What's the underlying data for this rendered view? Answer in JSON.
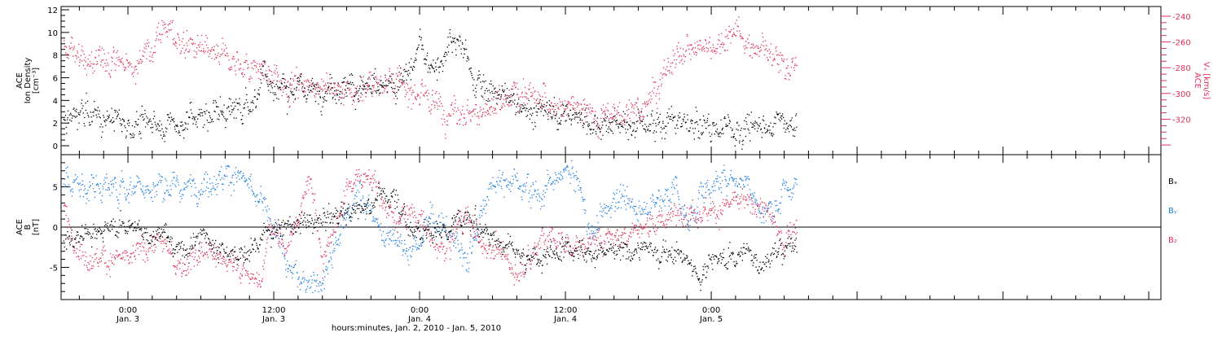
{
  "colors": {
    "black": "#000000",
    "velocity": "#e0305a",
    "bx": "#000000",
    "by": "#1f7fe0",
    "bz": "#e0305a"
  },
  "chart_data": [
    {
      "type": "scatter",
      "panel": "top",
      "ylabel_left": [
        "ACE",
        "Ion Density",
        "[cm⁻³]"
      ],
      "ylabel_right": [
        "ACE",
        "Vₓ [km/s]"
      ],
      "ylim_left": [
        -0.5,
        12
      ],
      "ylim_right": [
        -345,
        -235
      ],
      "yticks_left": [
        0,
        2,
        4,
        6,
        8,
        10,
        12
      ],
      "yticks_right": [
        -320,
        -300,
        -280,
        -260,
        -240
      ],
      "x_range_hours": [
        -5.5,
        85
      ],
      "series": [
        {
          "key": "density",
          "axis": "left",
          "color": "black",
          "knots": [
            [
              -5.3,
              2.6
            ],
            [
              -3,
              2.6
            ],
            [
              -1,
              2.1
            ],
            [
              1,
              1.9
            ],
            [
              3,
              1.9
            ],
            [
              5,
              2.3
            ],
            [
              7,
              2.9
            ],
            [
              9,
              3.3
            ],
            [
              10.5,
              4.2
            ],
            [
              11.2,
              6.8
            ],
            [
              12,
              5.2
            ],
            [
              14,
              5.0
            ],
            [
              17,
              5.2
            ],
            [
              20,
              5.1
            ],
            [
              22,
              5.0
            ],
            [
              23,
              6.0
            ],
            [
              24,
              8.5
            ],
            [
              25.5,
              7.0
            ],
            [
              26.5,
              9.0
            ],
            [
              27.5,
              8.5
            ],
            [
              29,
              5.0
            ],
            [
              31,
              4.5
            ],
            [
              33,
              3.2
            ],
            [
              35,
              2.8
            ],
            [
              37,
              2.5
            ],
            [
              39,
              2.3
            ],
            [
              40,
              2.0
            ],
            [
              42,
              2.2
            ],
            [
              45,
              2.1
            ],
            [
              47,
              1.5
            ],
            [
              51,
              1.5
            ],
            [
              53,
              2.0
            ],
            [
              54,
              2.3
            ],
            [
              55,
              2.0
            ]
          ],
          "noise": 0.9,
          "t_range": [
            -5.3,
            55
          ]
        },
        {
          "key": "vx",
          "axis": "right",
          "color": "velocity",
          "knots": [
            [
              -5.3,
              -265
            ],
            [
              -3,
              -275
            ],
            [
              -1,
              -272
            ],
            [
              0,
              -280
            ],
            [
              2,
              -265
            ],
            [
              3,
              -245
            ],
            [
              4,
              -258
            ],
            [
              6,
              -268
            ],
            [
              8,
              -273
            ],
            [
              10,
              -278
            ],
            [
              11,
              -283
            ],
            [
              13,
              -290
            ],
            [
              16,
              -293
            ],
            [
              18,
              -300
            ],
            [
              20,
              -292
            ],
            [
              22,
              -288
            ],
            [
              24,
              -302
            ],
            [
              26,
              -310
            ],
            [
              28,
              -315
            ],
            [
              30,
              -314
            ],
            [
              32,
              -300
            ],
            [
              34,
              -305
            ],
            [
              36,
              -310
            ],
            [
              38,
              -315
            ],
            [
              40,
              -318
            ],
            [
              42,
              -313
            ],
            [
              44,
              -285
            ],
            [
              46,
              -265
            ],
            [
              48,
              -262
            ],
            [
              50,
              -250
            ],
            [
              51,
              -262
            ],
            [
              53,
              -268
            ],
            [
              54,
              -278
            ],
            [
              55,
              -282
            ]
          ],
          "noise": 8,
          "t_range": [
            -5.3,
            55
          ]
        }
      ]
    },
    {
      "type": "scatter",
      "panel": "bottom",
      "ylabel_left": [
        "ACE",
        "B",
        "[nT]"
      ],
      "ylim": [
        -9,
        9
      ],
      "yticks": [
        -5,
        0,
        5
      ],
      "zero_line": true,
      "x_range_hours": [
        -5.5,
        85
      ],
      "legend": [
        "Bx",
        "By",
        "Bz"
      ],
      "series": [
        {
          "key": "bx",
          "color": "bx",
          "knots": [
            [
              -5.3,
              -1.5
            ],
            [
              -2,
              -0.5
            ],
            [
              0,
              0.5
            ],
            [
              2,
              -1
            ],
            [
              3,
              -1
            ],
            [
              4,
              -3
            ],
            [
              6,
              -1
            ],
            [
              8,
              -3
            ],
            [
              10,
              -3.5
            ],
            [
              11,
              -1
            ],
            [
              12,
              0
            ],
            [
              14,
              0.5
            ],
            [
              16,
              1
            ],
            [
              18,
              2
            ],
            [
              20,
              3
            ],
            [
              21,
              4
            ],
            [
              22,
              4
            ],
            [
              23,
              0
            ],
            [
              24,
              -0.5
            ],
            [
              26,
              -0.3
            ],
            [
              27,
              1.5
            ],
            [
              28,
              1
            ],
            [
              30,
              -1
            ],
            [
              32,
              -3
            ],
            [
              34,
              -4
            ],
            [
              36,
              -2
            ],
            [
              38,
              -3
            ],
            [
              40,
              -3
            ],
            [
              42,
              -2.5
            ],
            [
              44,
              -3
            ],
            [
              46,
              -3.5
            ],
            [
              47,
              -6.5
            ],
            [
              48,
              -4
            ],
            [
              50,
              -3.5
            ],
            [
              51,
              -3
            ],
            [
              52,
              -4.5
            ],
            [
              53,
              -3.5
            ],
            [
              55,
              -1.5
            ]
          ],
          "noise": 1.0,
          "t_range": [
            -5.3,
            55
          ]
        },
        {
          "key": "by",
          "color": "by",
          "knots": [
            [
              -5.3,
              5.5
            ],
            [
              -3,
              5
            ],
            [
              0,
              5
            ],
            [
              3,
              5
            ],
            [
              5,
              5
            ],
            [
              7,
              6
            ],
            [
              9,
              6.5
            ],
            [
              10,
              5
            ],
            [
              11,
              2.5
            ],
            [
              12,
              0
            ],
            [
              13,
              -5
            ],
            [
              14,
              -6.5
            ],
            [
              16,
              -6.5
            ],
            [
              17,
              -3
            ],
            [
              18,
              2
            ],
            [
              19,
              4
            ],
            [
              20,
              2
            ],
            [
              21,
              -1
            ],
            [
              22,
              -1
            ],
            [
              23,
              -3
            ],
            [
              24,
              -2
            ],
            [
              25,
              2
            ],
            [
              26,
              0
            ],
            [
              27,
              -2
            ],
            [
              28,
              -4
            ],
            [
              29,
              2
            ],
            [
              30,
              5.5
            ],
            [
              32,
              6
            ],
            [
              34,
              4
            ],
            [
              36,
              7
            ],
            [
              37,
              6
            ],
            [
              38,
              -1
            ],
            [
              40,
              4
            ],
            [
              42,
              2
            ],
            [
              44,
              4
            ],
            [
              45,
              5
            ],
            [
              46,
              0
            ],
            [
              47,
              4
            ],
            [
              48,
              5
            ],
            [
              49,
              6
            ],
            [
              51,
              6
            ],
            [
              52,
              2
            ],
            [
              53,
              2
            ],
            [
              54,
              5
            ],
            [
              55,
              5
            ]
          ],
          "noise": 1.2,
          "t_range": [
            -5.3,
            55
          ]
        },
        {
          "key": "bz",
          "color": "bz",
          "knots": [
            [
              -5.3,
              2
            ],
            [
              -4,
              -3
            ],
            [
              -2,
              -4
            ],
            [
              0,
              -4
            ],
            [
              2,
              -2
            ],
            [
              3,
              -2
            ],
            [
              4,
              -5
            ],
            [
              6,
              -3
            ],
            [
              8,
              -4
            ],
            [
              10,
              -6
            ],
            [
              11,
              -7
            ],
            [
              11.5,
              0
            ],
            [
              12,
              0
            ],
            [
              13,
              -3
            ],
            [
              14,
              1
            ],
            [
              15,
              7
            ],
            [
              16,
              -5
            ],
            [
              17,
              0
            ],
            [
              18,
              5
            ],
            [
              19,
              7
            ],
            [
              20,
              6
            ],
            [
              21,
              3
            ],
            [
              22,
              1
            ],
            [
              23,
              2
            ],
            [
              24,
              1
            ],
            [
              25,
              -2
            ],
            [
              26,
              -3
            ],
            [
              27,
              0
            ],
            [
              28,
              2
            ],
            [
              29,
              -2
            ],
            [
              30,
              -2
            ],
            [
              31,
              -4
            ],
            [
              32,
              -6
            ],
            [
              33,
              -4
            ],
            [
              34,
              -1
            ],
            [
              36,
              -2
            ],
            [
              38,
              -2
            ],
            [
              40,
              -1
            ],
            [
              42,
              0
            ],
            [
              44,
              1
            ],
            [
              46,
              2
            ],
            [
              48,
              2
            ],
            [
              50,
              3
            ],
            [
              52,
              3
            ],
            [
              53,
              1
            ],
            [
              54,
              -2
            ],
            [
              55,
              1
            ]
          ],
          "noise": 1.1,
          "t_range": [
            -5.3,
            55
          ]
        }
      ]
    }
  ],
  "x_axis": {
    "tick_hours": [
      0,
      12,
      24,
      36,
      48,
      60,
      72,
      84
    ],
    "tick_labels": [
      {
        "time": "0:00",
        "date": "Jan. 3"
      },
      {
        "time": "12:00",
        "date": "Jan. 3"
      },
      {
        "time": "0:00",
        "date": "Jan. 4"
      },
      {
        "time": "12:00",
        "date": "Jan. 4"
      },
      {
        "time": "0:00",
        "date": "Jan. 5"
      }
    ],
    "label": "hours:minutes, Jan. 2, 2010 - Jan. 5, 2010"
  },
  "labels": {
    "top_left": [
      "ACE",
      "Ion Density",
      "[cm⁻³]"
    ],
    "top_right": "ACE\nVₓ [km/s]",
    "bottom_left": [
      "ACE",
      "B",
      "[nT]"
    ],
    "legend_bx": "Bₓ",
    "legend_by": "Bᵧ",
    "legend_bz": "B₂"
  }
}
